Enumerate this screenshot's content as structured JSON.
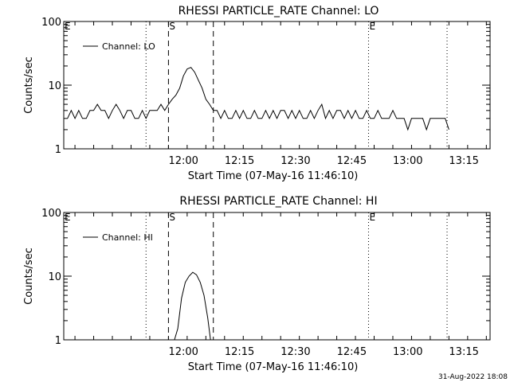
{
  "footer": {
    "timestamp": "31-Aug-2022 18:08"
  },
  "chart_data": [
    {
      "type": "line",
      "title": "RHESSI PARTICLE_RATE Channel: LO",
      "xlabel": "Start Time (07-May-16 11:46:10)",
      "ylabel": "Counts/sec",
      "yscale": "log",
      "ylim": [
        1,
        100
      ],
      "xlim_min": [
        -18,
        96
      ],
      "xtick_min": [
        14,
        29,
        44,
        59,
        74,
        89
      ],
      "xtick_labels": [
        "12:00",
        "12:15",
        "12:30",
        "12:45",
        "13:00",
        "13:15"
      ],
      "ytick_values": [
        1,
        10,
        100
      ],
      "ytick_labels": [
        "1",
        "10",
        "100"
      ],
      "legend": "Channel: LO",
      "markers": [
        {
          "label": "E",
          "time_min": -18,
          "style": "none"
        },
        {
          "label": "",
          "time_min": 4,
          "style": "dotted"
        },
        {
          "label": "S",
          "time_min": 10,
          "style": "dashed"
        },
        {
          "label": "",
          "time_min": 22,
          "style": "dashed"
        },
        {
          "label": "E",
          "time_min": 63.5,
          "style": "dotted"
        },
        {
          "label": "",
          "time_min": 84.5,
          "style": "dotted"
        }
      ],
      "series": [
        {
          "name": "LO",
          "points": [
            [
              -17,
              3
            ],
            [
              -16,
              4
            ],
            [
              -15,
              3
            ],
            [
              -14,
              4
            ],
            [
              -13,
              3
            ],
            [
              -12,
              3
            ],
            [
              -11,
              4
            ],
            [
              -10,
              4
            ],
            [
              -9,
              5
            ],
            [
              -8,
              4
            ],
            [
              -7,
              4
            ],
            [
              -6,
              3
            ],
            [
              -5,
              4
            ],
            [
              -4,
              5
            ],
            [
              -3,
              4
            ],
            [
              -2,
              3
            ],
            [
              -1,
              4
            ],
            [
              0,
              4
            ],
            [
              1,
              3
            ],
            [
              2,
              3
            ],
            [
              3,
              4
            ],
            [
              4,
              3
            ],
            [
              5,
              4
            ],
            [
              6,
              4
            ],
            [
              7,
              4
            ],
            [
              8,
              5
            ],
            [
              9,
              4
            ],
            [
              10,
              5
            ],
            [
              11,
              6
            ],
            [
              12,
              7
            ],
            [
              13,
              9
            ],
            [
              14,
              14
            ],
            [
              15,
              18
            ],
            [
              16,
              19
            ],
            [
              17,
              16
            ],
            [
              18,
              12
            ],
            [
              19,
              9
            ],
            [
              20,
              6
            ],
            [
              21,
              5
            ],
            [
              22,
              4
            ],
            [
              23,
              4
            ],
            [
              24,
              3
            ],
            [
              25,
              4
            ],
            [
              26,
              3
            ],
            [
              27,
              3
            ],
            [
              28,
              4
            ],
            [
              29,
              3
            ],
            [
              30,
              4
            ],
            [
              31,
              3
            ],
            [
              32,
              3
            ],
            [
              33,
              4
            ],
            [
              34,
              3
            ],
            [
              35,
              3
            ],
            [
              36,
              4
            ],
            [
              37,
              3
            ],
            [
              38,
              4
            ],
            [
              39,
              3
            ],
            [
              40,
              4
            ],
            [
              41,
              4
            ],
            [
              42,
              3
            ],
            [
              43,
              4
            ],
            [
              44,
              3
            ],
            [
              45,
              4
            ],
            [
              46,
              3
            ],
            [
              47,
              3
            ],
            [
              48,
              4
            ],
            [
              49,
              3
            ],
            [
              50,
              4
            ],
            [
              51,
              5
            ],
            [
              52,
              3
            ],
            [
              53,
              4
            ],
            [
              54,
              3
            ],
            [
              55,
              4
            ],
            [
              56,
              4
            ],
            [
              57,
              3
            ],
            [
              58,
              4
            ],
            [
              59,
              3
            ],
            [
              60,
              4
            ],
            [
              61,
              3
            ],
            [
              62,
              3
            ],
            [
              63,
              4
            ],
            [
              64,
              3
            ],
            [
              65,
              3
            ],
            [
              66,
              4
            ],
            [
              67,
              3
            ],
            [
              68,
              3
            ],
            [
              69,
              3
            ],
            [
              70,
              4
            ],
            [
              71,
              3
            ],
            [
              72,
              3
            ],
            [
              73,
              3
            ],
            [
              74,
              2
            ],
            [
              75,
              3
            ],
            [
              76,
              3
            ],
            [
              77,
              3
            ],
            [
              78,
              3
            ],
            [
              79,
              2
            ],
            [
              80,
              3
            ],
            [
              81,
              3
            ],
            [
              82,
              3
            ],
            [
              83,
              3
            ],
            [
              84,
              3
            ],
            [
              85,
              2
            ]
          ]
        }
      ]
    },
    {
      "type": "line",
      "title": "RHESSI PARTICLE_RATE Channel: HI",
      "xlabel": "Start Time (07-May-16 11:46:10)",
      "ylabel": "Counts/sec",
      "yscale": "log",
      "ylim": [
        1,
        100
      ],
      "xlim_min": [
        -18,
        96
      ],
      "xtick_min": [
        14,
        29,
        44,
        59,
        74,
        89
      ],
      "xtick_labels": [
        "12:00",
        "12:15",
        "12:30",
        "12:45",
        "13:00",
        "13:15"
      ],
      "ytick_values": [
        1,
        10,
        100
      ],
      "ytick_labels": [
        "1",
        "10",
        "100"
      ],
      "legend": "Channel: HI",
      "markers": [
        {
          "label": "E",
          "time_min": -18,
          "style": "none"
        },
        {
          "label": "",
          "time_min": 4,
          "style": "dotted"
        },
        {
          "label": "S",
          "time_min": 10,
          "style": "dashed"
        },
        {
          "label": "",
          "time_min": 22,
          "style": "dashed"
        },
        {
          "label": "E",
          "time_min": 63.5,
          "style": "dotted"
        },
        {
          "label": "",
          "time_min": 84.5,
          "style": "dotted"
        }
      ],
      "series": [
        {
          "name": "HI",
          "points": [
            [
              11.5,
              0.95
            ],
            [
              12.5,
              1.5
            ],
            [
              13.5,
              4.5
            ],
            [
              14.5,
              8
            ],
            [
              15.5,
              10
            ],
            [
              16.5,
              11.5
            ],
            [
              17.5,
              10.5
            ],
            [
              18.5,
              8
            ],
            [
              19.5,
              5
            ],
            [
              20.5,
              2.2
            ],
            [
              21.3,
              0.95
            ]
          ]
        }
      ]
    }
  ]
}
